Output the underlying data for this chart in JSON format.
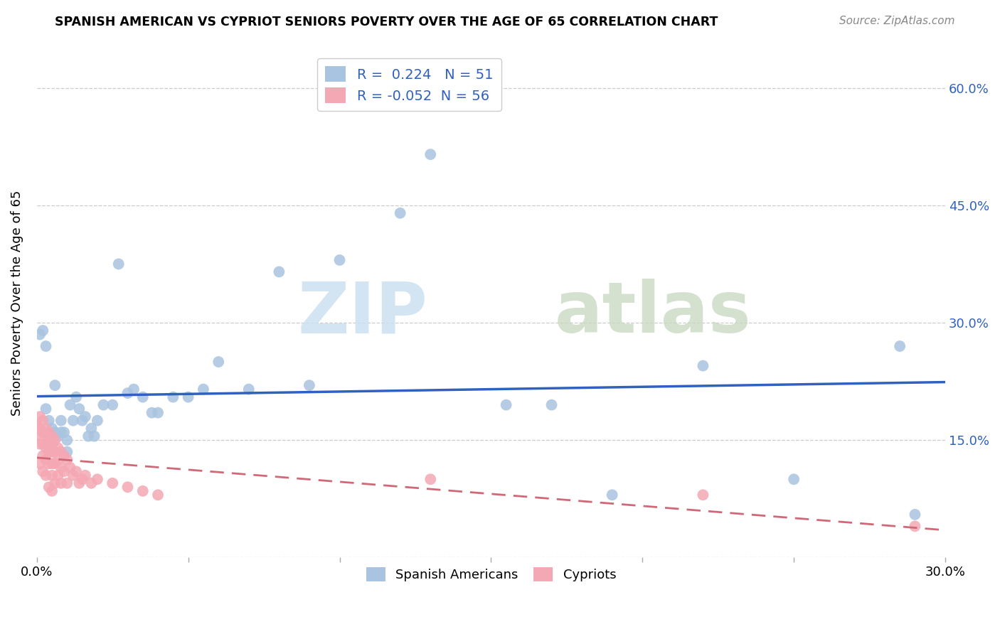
{
  "title": "SPANISH AMERICAN VS CYPRIOT SENIORS POVERTY OVER THE AGE OF 65 CORRELATION CHART",
  "source": "Source: ZipAtlas.com",
  "ylabel": "Seniors Poverty Over the Age of 65",
  "xlim": [
    0.0,
    0.3
  ],
  "ylim": [
    0.0,
    0.65
  ],
  "xtick_positions": [
    0.0,
    0.05,
    0.1,
    0.15,
    0.2,
    0.25,
    0.3
  ],
  "xticklabels": [
    "0.0%",
    "",
    "",
    "",
    "",
    "",
    "30.0%"
  ],
  "ytick_positions": [
    0.0,
    0.15,
    0.3,
    0.45,
    0.6
  ],
  "ytick_labels": [
    "",
    "15.0%",
    "30.0%",
    "45.0%",
    "60.0%"
  ],
  "blue_R": 0.224,
  "blue_N": 51,
  "pink_R": -0.052,
  "pink_N": 56,
  "blue_color": "#a8c4e0",
  "pink_color": "#f4a8b4",
  "blue_line_color": "#3060c0",
  "pink_line_color": "#d06878",
  "spanish_x": [
    0.001,
    0.002,
    0.003,
    0.003,
    0.004,
    0.004,
    0.005,
    0.005,
    0.006,
    0.006,
    0.007,
    0.008,
    0.008,
    0.009,
    0.01,
    0.01,
    0.011,
    0.012,
    0.013,
    0.014,
    0.015,
    0.016,
    0.017,
    0.018,
    0.019,
    0.02,
    0.022,
    0.025,
    0.027,
    0.03,
    0.032,
    0.035,
    0.038,
    0.04,
    0.045,
    0.05,
    0.055,
    0.06,
    0.07,
    0.08,
    0.09,
    0.1,
    0.12,
    0.13,
    0.155,
    0.17,
    0.19,
    0.22,
    0.25,
    0.285,
    0.29
  ],
  "spanish_y": [
    0.285,
    0.29,
    0.27,
    0.19,
    0.175,
    0.155,
    0.165,
    0.145,
    0.16,
    0.22,
    0.155,
    0.175,
    0.16,
    0.16,
    0.135,
    0.15,
    0.195,
    0.175,
    0.205,
    0.19,
    0.175,
    0.18,
    0.155,
    0.165,
    0.155,
    0.175,
    0.195,
    0.195,
    0.375,
    0.21,
    0.215,
    0.205,
    0.185,
    0.185,
    0.205,
    0.205,
    0.215,
    0.25,
    0.215,
    0.365,
    0.22,
    0.38,
    0.44,
    0.515,
    0.195,
    0.195,
    0.08,
    0.245,
    0.1,
    0.27,
    0.055
  ],
  "cypriot_x": [
    0.0,
    0.0,
    0.001,
    0.001,
    0.001,
    0.001,
    0.002,
    0.002,
    0.002,
    0.002,
    0.002,
    0.003,
    0.003,
    0.003,
    0.003,
    0.003,
    0.004,
    0.004,
    0.004,
    0.004,
    0.004,
    0.005,
    0.005,
    0.005,
    0.005,
    0.005,
    0.005,
    0.006,
    0.006,
    0.006,
    0.006,
    0.007,
    0.007,
    0.007,
    0.008,
    0.008,
    0.008,
    0.009,
    0.009,
    0.01,
    0.01,
    0.011,
    0.012,
    0.013,
    0.014,
    0.015,
    0.016,
    0.018,
    0.02,
    0.025,
    0.03,
    0.035,
    0.04,
    0.13,
    0.22,
    0.29
  ],
  "cypriot_y": [
    0.17,
    0.155,
    0.18,
    0.165,
    0.145,
    0.12,
    0.175,
    0.16,
    0.145,
    0.13,
    0.11,
    0.165,
    0.155,
    0.14,
    0.125,
    0.105,
    0.16,
    0.15,
    0.135,
    0.12,
    0.09,
    0.155,
    0.145,
    0.135,
    0.12,
    0.105,
    0.085,
    0.15,
    0.135,
    0.12,
    0.095,
    0.14,
    0.125,
    0.105,
    0.135,
    0.115,
    0.095,
    0.13,
    0.11,
    0.125,
    0.095,
    0.115,
    0.105,
    0.11,
    0.095,
    0.1,
    0.105,
    0.095,
    0.1,
    0.095,
    0.09,
    0.085,
    0.08,
    0.1,
    0.08,
    0.04
  ]
}
